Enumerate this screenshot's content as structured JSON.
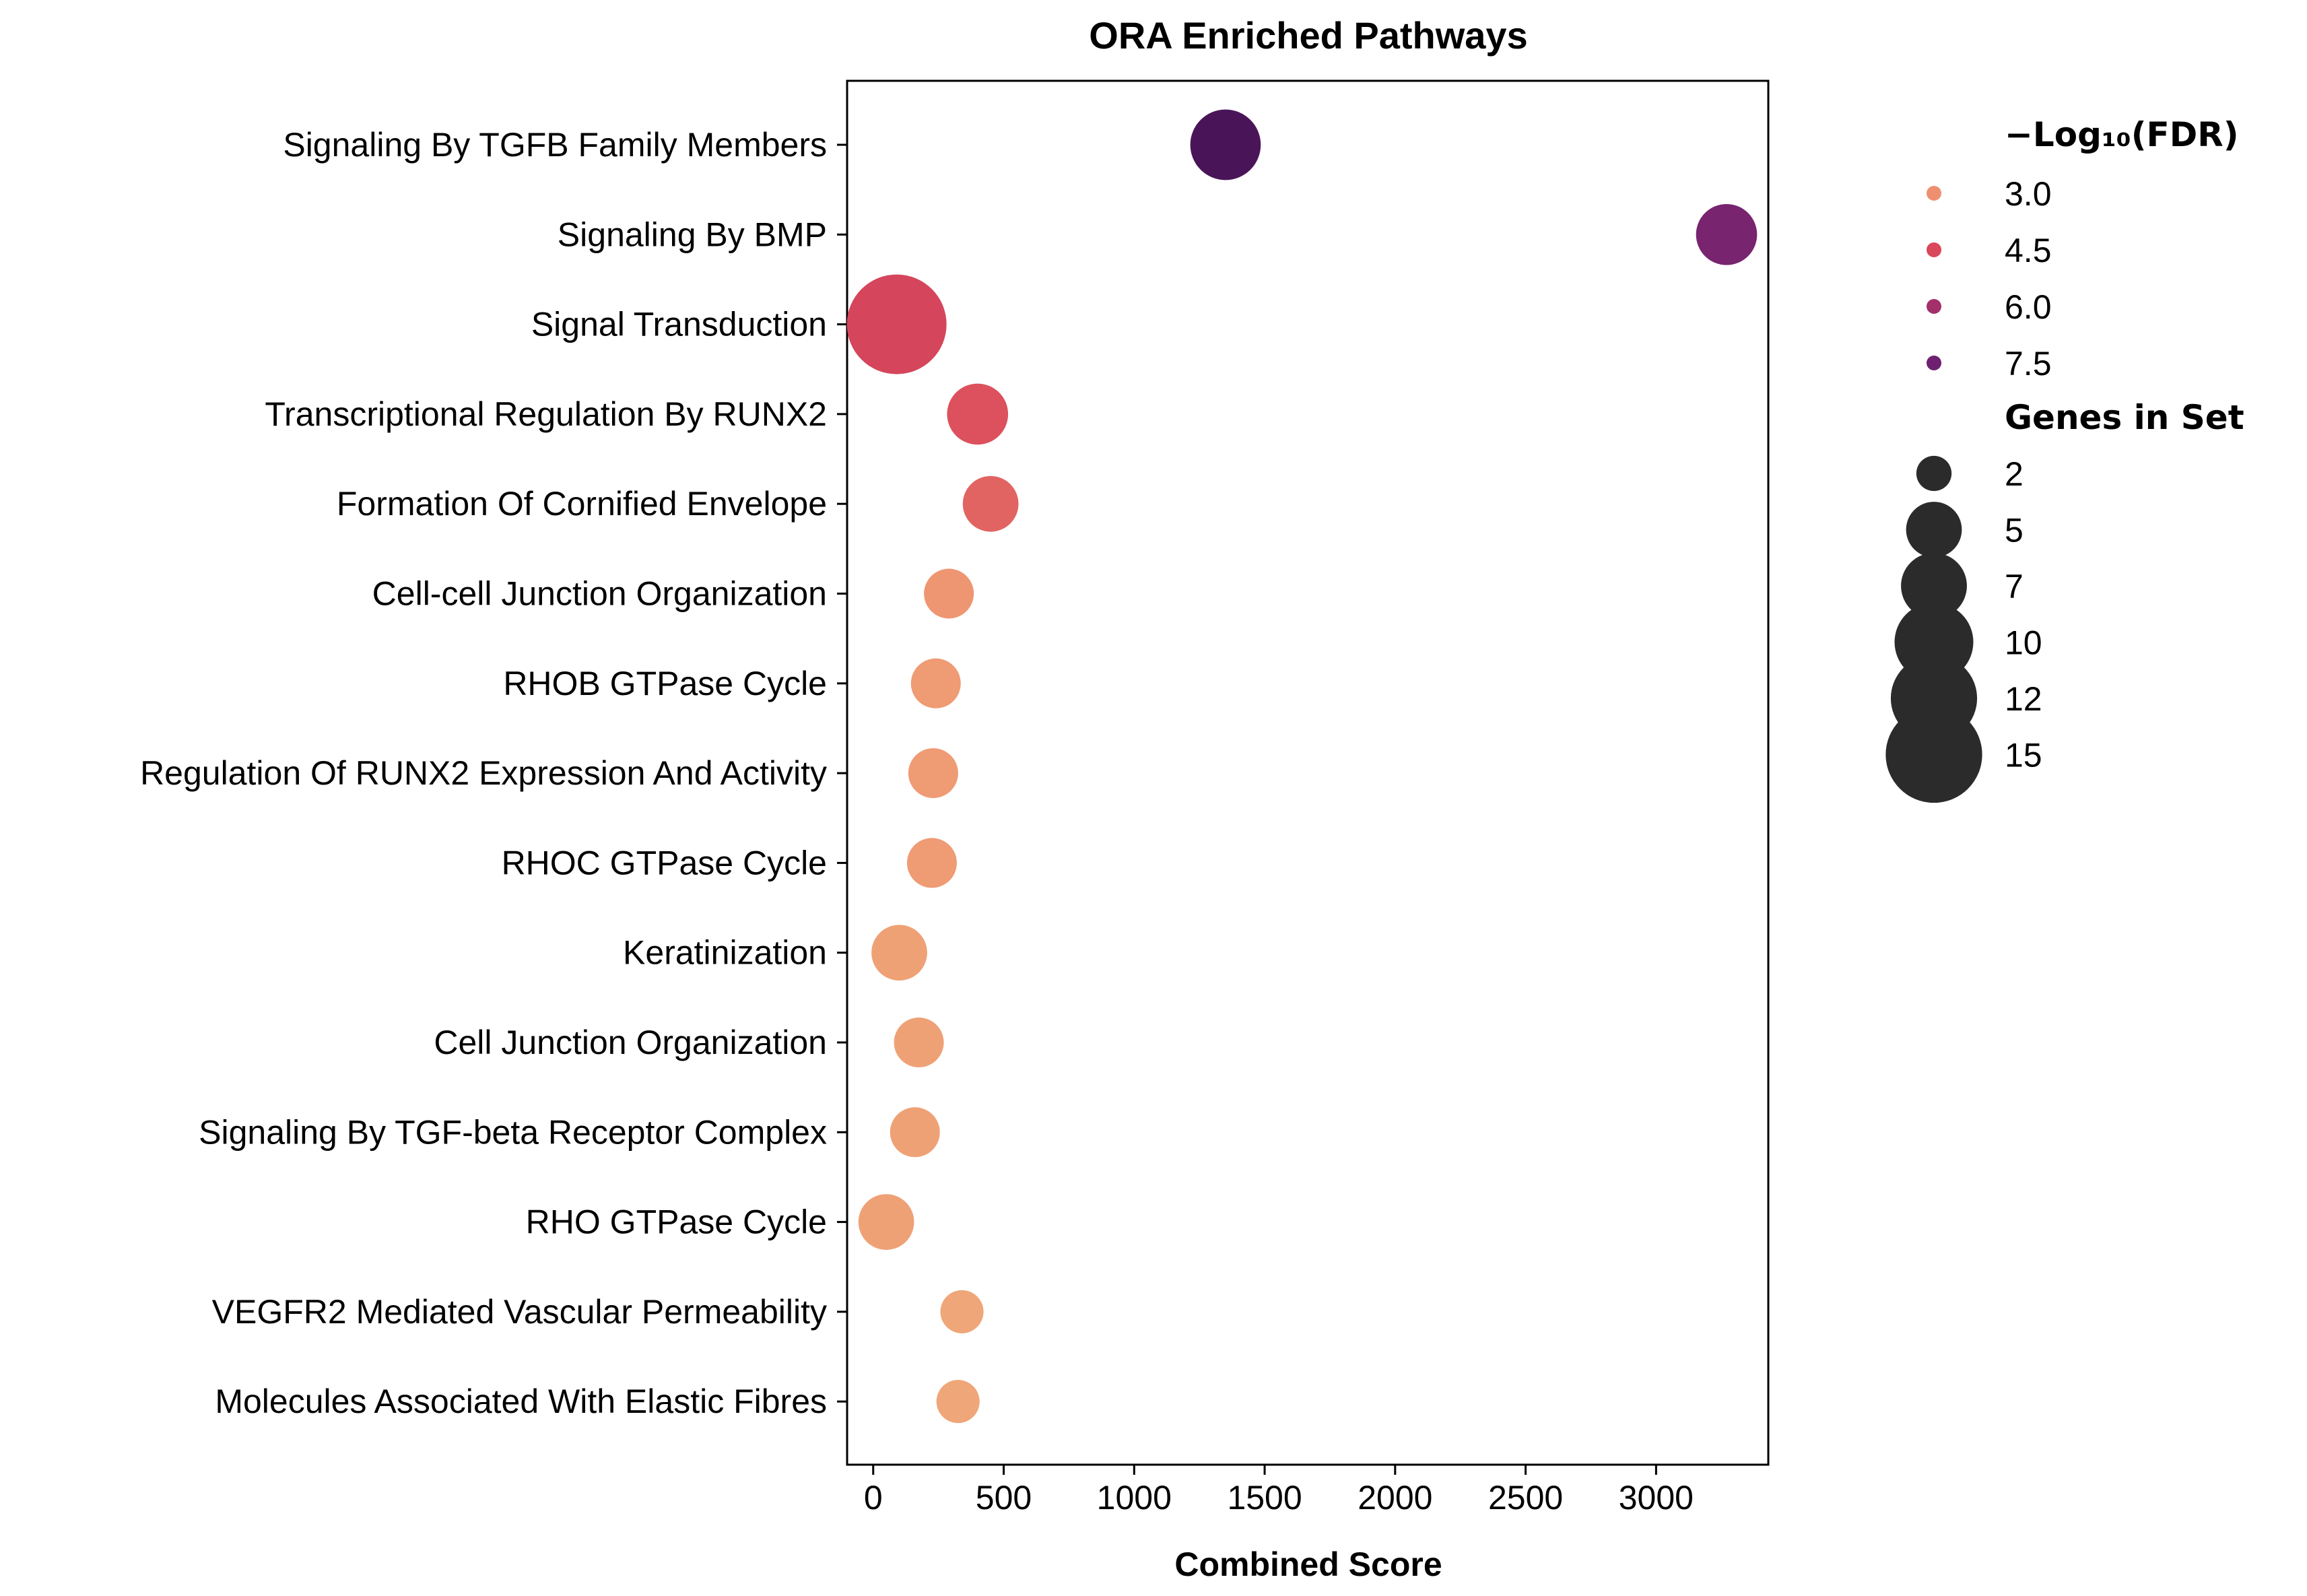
{
  "chart_data": {
    "type": "scatter",
    "title": "ORA Enriched Pathways",
    "xlabel": "Combined Score",
    "ylabel": "",
    "xlim": [
      -100,
      3430
    ],
    "xticks": [
      0,
      500,
      1000,
      1500,
      2000,
      2500,
      3000
    ],
    "grid": false,
    "legend_position": "outside-right",
    "points": [
      {
        "term": "Signaling By TGFB Family Members",
        "combined_score": 1350,
        "neg_log10_fdr": 8.6,
        "genes_in_set": 8
      },
      {
        "term": "Signaling By BMP",
        "combined_score": 3270,
        "neg_log10_fdr": 7.2,
        "genes_in_set": 6
      },
      {
        "term": "Signal Transduction",
        "combined_score": 90,
        "neg_log10_fdr": 4.6,
        "genes_in_set": 16
      },
      {
        "term": "Transcriptional Regulation By RUNX2",
        "combined_score": 400,
        "neg_log10_fdr": 4.3,
        "genes_in_set": 6
      },
      {
        "term": "Formation Of Cornified Envelope",
        "combined_score": 450,
        "neg_log10_fdr": 3.9,
        "genes_in_set": 5
      },
      {
        "term": "Cell-cell Junction Organization",
        "combined_score": 290,
        "neg_log10_fdr": 2.9,
        "genes_in_set": 4
      },
      {
        "term": "RHOB GTPase Cycle",
        "combined_score": 240,
        "neg_log10_fdr": 2.8,
        "genes_in_set": 4
      },
      {
        "term": "Regulation Of RUNX2 Expression And Activity",
        "combined_score": 230,
        "neg_log10_fdr": 2.8,
        "genes_in_set": 4
      },
      {
        "term": "RHOC GTPase Cycle",
        "combined_score": 225,
        "neg_log10_fdr": 2.8,
        "genes_in_set": 4
      },
      {
        "term": "Keratinization",
        "combined_score": 100,
        "neg_log10_fdr": 2.7,
        "genes_in_set": 5
      },
      {
        "term": "Cell Junction Organization",
        "combined_score": 175,
        "neg_log10_fdr": 2.7,
        "genes_in_set": 4
      },
      {
        "term": "Signaling By TGF-beta Receptor Complex",
        "combined_score": 160,
        "neg_log10_fdr": 2.7,
        "genes_in_set": 4
      },
      {
        "term": "RHO GTPase Cycle",
        "combined_score": 50,
        "neg_log10_fdr": 2.7,
        "genes_in_set": 5
      },
      {
        "term": "VEGFR2 Mediated Vascular Permeability",
        "combined_score": 340,
        "neg_log10_fdr": 2.6,
        "genes_in_set": 3
      },
      {
        "term": "Molecules Associated With Elastic Fibres",
        "combined_score": 325,
        "neg_log10_fdr": 2.6,
        "genes_in_set": 3
      }
    ],
    "color_legend": {
      "title": "−Log₁₀(FDR)",
      "entries": [
        {
          "label": "3.0",
          "color": "#ee9070"
        },
        {
          "label": "4.5",
          "color": "#d9475a"
        },
        {
          "label": "6.0",
          "color": "#a2306b"
        },
        {
          "label": "7.5",
          "color": "#6e2170"
        }
      ]
    },
    "size_legend": {
      "title": "Genes in Set",
      "entries": [
        {
          "label": "2",
          "genes": 2
        },
        {
          "label": "5",
          "genes": 5
        },
        {
          "label": "7",
          "genes": 7
        },
        {
          "label": "10",
          "genes": 10
        },
        {
          "label": "12",
          "genes": 12
        },
        {
          "label": "15",
          "genes": 15
        }
      ],
      "color": "#2b2b2b"
    }
  }
}
